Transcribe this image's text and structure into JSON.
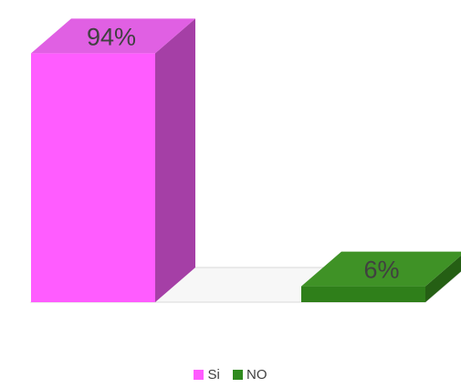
{
  "chart_data": {
    "type": "bar",
    "style": "3d-column",
    "categories": [
      "Si",
      "NO"
    ],
    "values": [
      94,
      6
    ],
    "data_labels": [
      "94%",
      "6%"
    ],
    "ylim": [
      0,
      100
    ],
    "grid": false,
    "legend_position": "bottom",
    "colors": {
      "Si": {
        "front": "#ff5cff",
        "side": "#a53fa6",
        "top": "#e060e3"
      },
      "NO": {
        "front": "#2f7f1a",
        "side": "#255f14",
        "top": "#3f9226"
      }
    }
  },
  "legend": {
    "items": [
      {
        "label": "Si",
        "color": "#ff5cff"
      },
      {
        "label": "NO",
        "color": "#2f8a1e"
      }
    ]
  }
}
